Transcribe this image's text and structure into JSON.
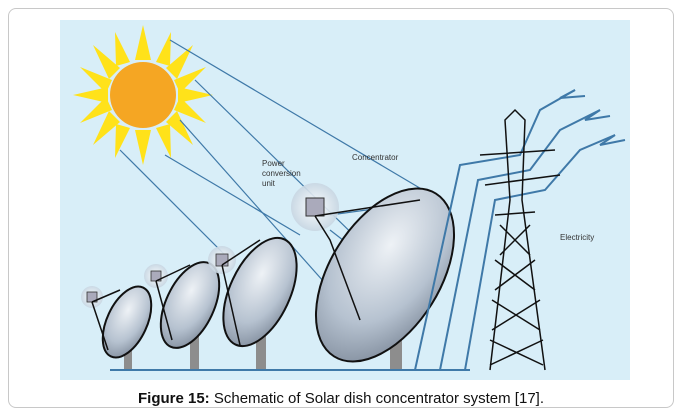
{
  "figure": {
    "labels": {
      "power_conversion_unit": [
        "Power",
        "conversion",
        "unit"
      ],
      "concentrator": "Concentrator",
      "electricity": "Electricity"
    },
    "caption": {
      "label": "Figure 15:",
      "text": "Schematic of Solar dish concentrator system [17]."
    }
  }
}
